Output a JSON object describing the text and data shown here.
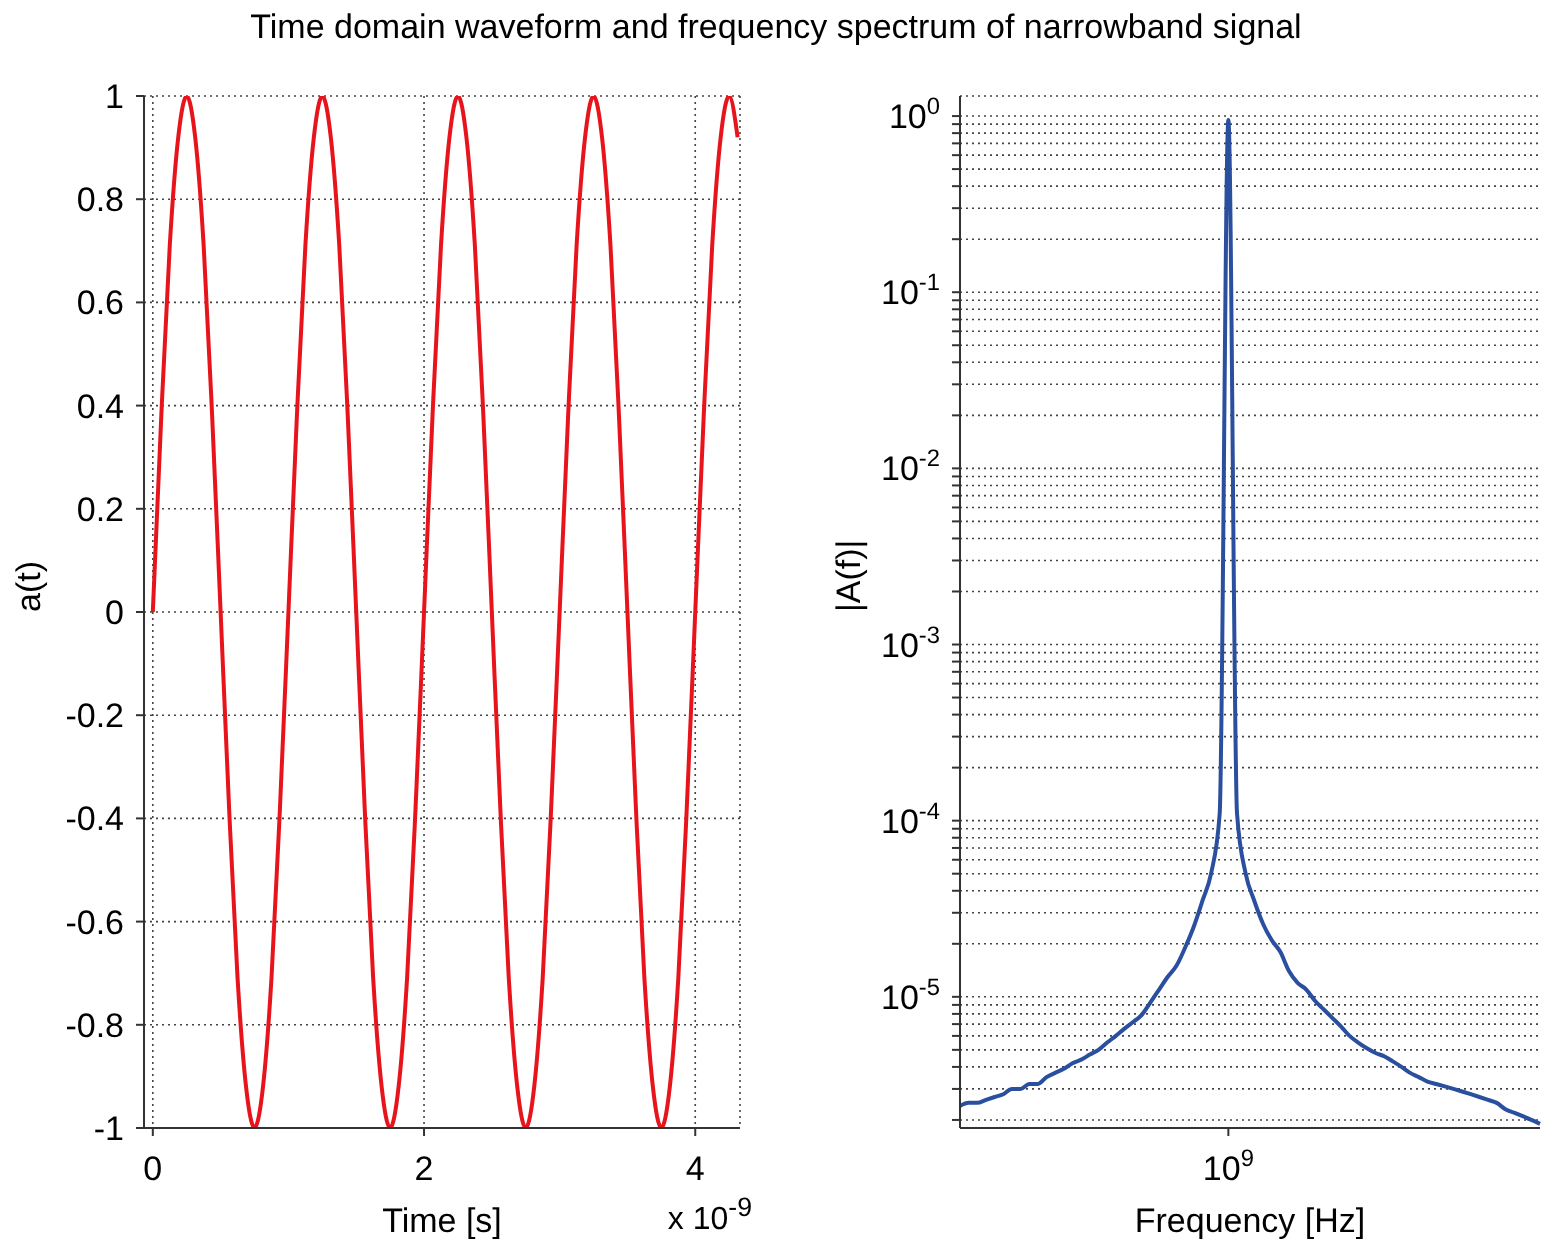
{
  "chart_data": [
    {
      "type": "line",
      "title": "Time domain waveform and frequency spectrum of narrowband signal",
      "xlabel": "Time [s]",
      "ylabel": "a(t)",
      "annotations": [
        "x 10$^{-9}$"
      ],
      "x": [
        0,
        0.0625,
        0.125,
        0.1875,
        0.25,
        0.3125,
        0.375,
        0.4375,
        0.5,
        0.5625,
        0.625,
        0.6875,
        0.75,
        0.8125,
        0.875,
        0.9375,
        1,
        1.0625,
        1.125,
        1.1875,
        1.25,
        1.3125,
        1.375,
        1.4375,
        1.5,
        1.5625,
        1.625,
        1.6875,
        1.75,
        1.8125,
        1.875,
        1.9375,
        2,
        2.0625,
        2.125,
        2.1875,
        2.25,
        2.3125,
        2.375,
        2.4375,
        2.5,
        2.5625,
        2.625,
        2.6875,
        2.75,
        2.8125,
        2.875,
        2.9375,
        3,
        3.0625,
        3.125,
        3.1875,
        3.25,
        3.3125,
        3.375,
        3.4375,
        3.5,
        3.5625,
        3.625,
        3.6875,
        3.75,
        3.8125,
        3.875,
        3.9375,
        4,
        4.0625,
        4.125,
        4.1875,
        4.25,
        4.3125
      ],
      "series": [
        {
          "color": "#e8141c",
          "values": [
            0,
            0.38,
            0.71,
            0.92,
            1,
            0.92,
            0.71,
            0.38,
            0,
            -0.38,
            -0.71,
            -0.92,
            -1,
            -0.92,
            -0.71,
            -0.38,
            0,
            0.38,
            0.71,
            0.92,
            1,
            0.92,
            0.71,
            0.38,
            0,
            -0.38,
            -0.71,
            -0.92,
            -1,
            -0.92,
            -0.71,
            -0.38,
            0,
            0.38,
            0.71,
            0.92,
            1,
            0.92,
            0.71,
            0.38,
            0,
            -0.38,
            -0.71,
            -0.92,
            -1,
            -0.92,
            -0.71,
            -0.38,
            0,
            0.38,
            0.71,
            0.92,
            1,
            0.92,
            0.71,
            0.38,
            0,
            -0.38,
            -0.71,
            -0.92,
            -1,
            -0.92,
            -0.71,
            -0.38,
            0,
            0.38,
            0.71,
            0.92,
            1,
            0.92
          ]
        }
      ],
      "xlim": [
        -0.065,
        4.33
      ],
      "ylim": [
        -1,
        1
      ],
      "xticks": [
        0,
        2,
        4
      ],
      "yticks": [
        -1,
        -0.8,
        -0.6,
        -0.4,
        -0.2,
        0,
        0.2,
        0.4,
        0.6,
        0.8,
        1
      ],
      "grid": true
    },
    {
      "type": "line",
      "xlabel": "Frequency [Hz]",
      "ylabel": "|A(f)|",
      "log": "y",
      "categories": [
        null,
        null,
        null,
        null,
        null,
        null,
        null,
        null,
        null,
        null,
        null,
        null,
        null,
        null,
        null,
        null,
        null,
        null,
        null,
        null,
        null,
        null,
        null,
        null,
        null,
        null,
        null,
        null,
        null,
        null,
        null,
        "10$^{9}$",
        null,
        null,
        null,
        null,
        null,
        null,
        null,
        null,
        null,
        null,
        null,
        null,
        null,
        null,
        null,
        null,
        null,
        null,
        null,
        null,
        null,
        null,
        null,
        null,
        null,
        null,
        null,
        null,
        null,
        null,
        null,
        null,
        null,
        null,
        null,
        null
      ],
      "series": [
        {
          "color": "#2a4f9e",
          "values": [
            2.4e-06,
            2.5e-06,
            2.5e-06,
            2.6e-06,
            2.7e-06,
            2.8e-06,
            3e-06,
            3e-06,
            3.2e-06,
            3.2e-06,
            3.5e-06,
            3.7e-06,
            3.9e-06,
            4.2e-06,
            4.4e-06,
            4.7e-06,
            5e-06,
            5.5e-06,
            6e-06,
            6.6e-06,
            7.2e-06,
            7.9e-06,
            9.3e-06,
            1.1e-05,
            1.3e-05,
            1.5e-05,
            1.9e-05,
            2.5e-05,
            3.5e-05,
            5e-05,
            0.00011,
            0.95,
            0.00011,
            5e-05,
            3.5e-05,
            2.6e-05,
            2.1e-05,
            1.8e-05,
            1.4e-05,
            1.2e-05,
            1.1e-05,
            9.5e-06,
            8.5e-06,
            7.6e-06,
            6.8e-06,
            6e-06,
            5.5e-06,
            5.1e-06,
            4.8e-06,
            4.6e-06,
            4.3e-06,
            4e-06,
            3.7e-06,
            3.5e-06,
            3.3e-06,
            3.2e-06,
            3.1e-06,
            3e-06,
            2.9e-06,
            2.8e-06,
            2.7e-06,
            2.6e-06,
            2.5e-06,
            2.3e-06,
            2.2e-06,
            2.1e-06,
            2e-06,
            1.9e-06
          ]
        }
      ],
      "ylim": [
        1.8e-06,
        1.3
      ],
      "yticks": [
        {
          "value": 1e-05,
          "label": "10$^{-5}$"
        },
        {
          "value": 0.0001,
          "label": "10$^{-4}$"
        },
        {
          "value": 0.001,
          "label": "10$^{-3}$"
        },
        {
          "value": 0.01,
          "label": "10$^{-2}$"
        },
        {
          "value": 0.1,
          "label": "10$^{-1}$"
        },
        {
          "value": 1,
          "label": "10$^{0}$"
        },
        {
          "value": 2e-06,
          "label": null
        },
        {
          "value": 3e-06,
          "label": null
        },
        {
          "value": 4e-06,
          "label": null
        },
        {
          "value": 5e-06,
          "label": null
        },
        {
          "value": 6e-06,
          "label": null
        },
        {
          "value": 7e-06,
          "label": null
        },
        {
          "value": 8e-06,
          "label": null
        },
        {
          "value": 9e-06,
          "label": null
        },
        {
          "value": 2e-05,
          "label": null
        },
        {
          "value": 3e-05,
          "label": null
        },
        {
          "value": 4e-05,
          "label": null
        },
        {
          "value": 5e-05,
          "label": null
        },
        {
          "value": 6e-05,
          "label": null
        },
        {
          "value": 7e-05,
          "label": null
        },
        {
          "value": 8e-05,
          "label": null
        },
        {
          "value": 9e-05,
          "label": null
        },
        {
          "value": 0.0002,
          "label": null
        },
        {
          "value": 0.0003,
          "label": null
        },
        {
          "value": 0.0004,
          "label": null
        },
        {
          "value": 0.0005,
          "label": null
        },
        {
          "value": 0.0006,
          "label": null
        },
        {
          "value": 0.0007,
          "label": null
        },
        {
          "value": 0.0008,
          "label": null
        },
        {
          "value": 0.0009,
          "label": null
        },
        {
          "value": 0.002,
          "label": null
        },
        {
          "value": 0.003,
          "label": null
        },
        {
          "value": 0.004,
          "label": null
        },
        {
          "value": 0.005,
          "label": null
        },
        {
          "value": 0.006,
          "label": null
        },
        {
          "value": 0.007,
          "label": null
        },
        {
          "value": 0.008,
          "label": null
        },
        {
          "value": 0.009,
          "label": null
        },
        {
          "value": 0.02,
          "label": null
        },
        {
          "value": 0.03,
          "label": null
        },
        {
          "value": 0.04,
          "label": null
        },
        {
          "value": 0.05,
          "label": null
        },
        {
          "value": 0.06,
          "label": null
        },
        {
          "value": 0.07,
          "label": null
        },
        {
          "value": 0.08,
          "label": null
        },
        {
          "value": 0.09,
          "label": null
        },
        {
          "value": 0.2,
          "label": null
        },
        {
          "value": 0.3,
          "label": null
        },
        {
          "value": 0.4,
          "label": null
        },
        {
          "value": 0.5,
          "label": null
        },
        {
          "value": 0.6,
          "label": null
        },
        {
          "value": 0.7,
          "label": null
        },
        {
          "value": 0.8,
          "label": null
        },
        {
          "value": 0.9,
          "label": null
        }
      ],
      "grid": "y"
    }
  ]
}
